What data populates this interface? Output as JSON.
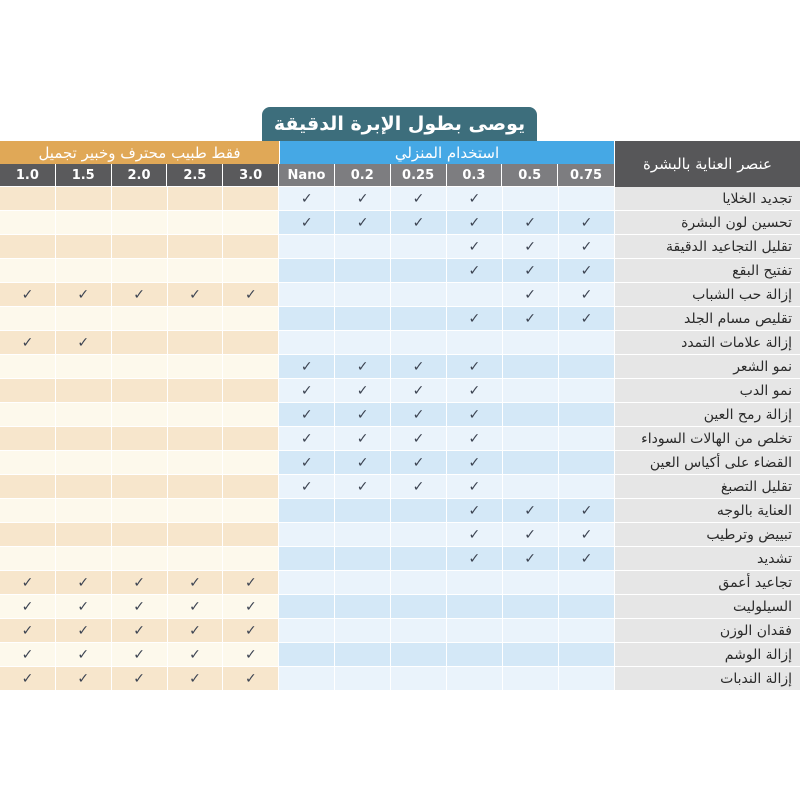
{
  "title": "يوصى بطول الإبرة الدقيقة",
  "sections": {
    "professional": "فقط طبيب محترف وخبير تجميل",
    "home": "استخدام المنزلي"
  },
  "label_header": "عنصر العناية بالبشرة",
  "check_symbol": "✓",
  "columns": [
    {
      "label": "1.0",
      "group": "pro"
    },
    {
      "label": "1.5",
      "group": "pro"
    },
    {
      "label": "2.0",
      "group": "pro"
    },
    {
      "label": "2.5",
      "group": "pro"
    },
    {
      "label": "3.0",
      "group": "pro"
    },
    {
      "label": "Nano",
      "group": "home"
    },
    {
      "label": "0.2",
      "group": "home"
    },
    {
      "label": "0.25",
      "group": "home"
    },
    {
      "label": "0.3",
      "group": "home"
    },
    {
      "label": "0.5",
      "group": "home"
    },
    {
      "label": "0.75",
      "group": "home"
    }
  ],
  "rows": [
    {
      "label": "تجديد الخلايا",
      "checks": [
        0,
        0,
        0,
        0,
        0,
        1,
        1,
        1,
        1,
        0,
        0
      ]
    },
    {
      "label": "تحسين لون البشرة",
      "checks": [
        0,
        0,
        0,
        0,
        0,
        1,
        1,
        1,
        1,
        1,
        1
      ]
    },
    {
      "label": "تقليل التجاعيد الدقيقة",
      "checks": [
        0,
        0,
        0,
        0,
        0,
        0,
        0,
        0,
        1,
        1,
        1
      ]
    },
    {
      "label": "تفتيح البقع",
      "checks": [
        0,
        0,
        0,
        0,
        0,
        0,
        0,
        0,
        1,
        1,
        1
      ]
    },
    {
      "label": "إزالة حب الشباب",
      "checks": [
        1,
        1,
        1,
        1,
        1,
        0,
        0,
        0,
        0,
        1,
        1
      ]
    },
    {
      "label": "تقليص مسام الجلد",
      "checks": [
        0,
        0,
        0,
        0,
        0,
        0,
        0,
        0,
        1,
        1,
        1
      ]
    },
    {
      "label": "إزالة علامات التمدد",
      "checks": [
        1,
        1,
        0,
        0,
        0,
        0,
        0,
        0,
        0,
        0,
        0
      ]
    },
    {
      "label": "نمو الشعر",
      "checks": [
        0,
        0,
        0,
        0,
        0,
        1,
        1,
        1,
        1,
        0,
        0
      ]
    },
    {
      "label": "نمو الدب",
      "checks": [
        0,
        0,
        0,
        0,
        0,
        1,
        1,
        1,
        1,
        0,
        0
      ]
    },
    {
      "label": "إزالة رمح العين",
      "checks": [
        0,
        0,
        0,
        0,
        0,
        1,
        1,
        1,
        1,
        0,
        0
      ]
    },
    {
      "label": "تخلص من الهالات السوداء",
      "checks": [
        0,
        0,
        0,
        0,
        0,
        1,
        1,
        1,
        1,
        0,
        0
      ]
    },
    {
      "label": "القضاء على أكياس العين",
      "checks": [
        0,
        0,
        0,
        0,
        0,
        1,
        1,
        1,
        1,
        0,
        0
      ]
    },
    {
      "label": "تقليل التصبغ",
      "checks": [
        0,
        0,
        0,
        0,
        0,
        1,
        1,
        1,
        1,
        0,
        0
      ]
    },
    {
      "label": "العناية بالوجه",
      "checks": [
        0,
        0,
        0,
        0,
        0,
        0,
        0,
        0,
        1,
        1,
        1
      ]
    },
    {
      "label": "تبييض وترطيب",
      "checks": [
        0,
        0,
        0,
        0,
        0,
        0,
        0,
        0,
        1,
        1,
        1
      ]
    },
    {
      "label": "تشديد",
      "checks": [
        0,
        0,
        0,
        0,
        0,
        0,
        0,
        0,
        1,
        1,
        1
      ]
    },
    {
      "label": "تجاعيد أعمق",
      "checks": [
        1,
        1,
        1,
        1,
        1,
        0,
        0,
        0,
        0,
        0,
        0
      ]
    },
    {
      "label": "السيلوليت",
      "checks": [
        1,
        1,
        1,
        1,
        1,
        0,
        0,
        0,
        0,
        0,
        0
      ]
    },
    {
      "label": "فقدان الوزن",
      "checks": [
        1,
        1,
        1,
        1,
        1,
        0,
        0,
        0,
        0,
        0,
        0
      ]
    },
    {
      "label": "إزالة الوشم",
      "checks": [
        1,
        1,
        1,
        1,
        1,
        0,
        0,
        0,
        0,
        0,
        0
      ]
    },
    {
      "label": "إزالة الندبات",
      "checks": [
        1,
        1,
        1,
        1,
        1,
        0,
        0,
        0,
        0,
        0,
        0
      ]
    }
  ],
  "colors": {
    "title_bg": "#3d6e7c",
    "pro_header": "#e0a857",
    "home_header": "#45a8e5",
    "label_header": "#575759",
    "pro_col_header": "#5a5a5c",
    "home_col_header": "#7d7d80"
  }
}
